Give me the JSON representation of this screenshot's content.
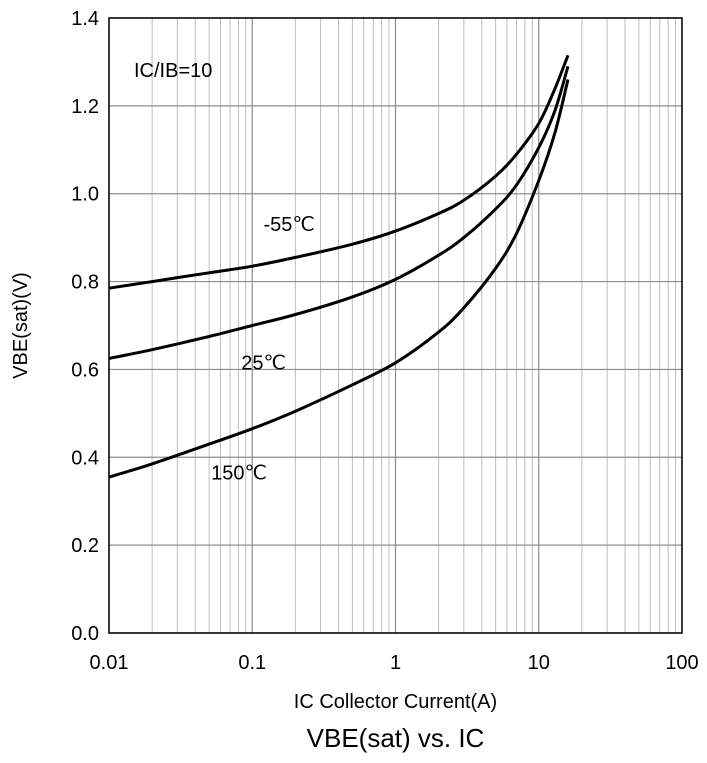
{
  "chart_data": {
    "type": "line",
    "title": "VBE(sat) vs. IC",
    "xlabel": "IC Collector Current(A)",
    "ylabel": "VBE(sat)(V)",
    "x_scale": "log",
    "xlim": [
      0.01,
      100
    ],
    "ylim": [
      0.0,
      1.4
    ],
    "x_ticks": [
      "0.01",
      "0.1",
      "1",
      "10",
      "100"
    ],
    "y_ticks": [
      "0.0",
      "0.2",
      "0.4",
      "0.6",
      "0.8",
      "1.0",
      "1.2",
      "1.4"
    ],
    "grid": true,
    "condition_label": "IC/IB=10",
    "series": [
      {
        "name": "-55℃",
        "x": [
          0.01,
          0.02,
          0.05,
          0.1,
          0.2,
          0.5,
          1,
          2,
          3,
          5,
          7,
          10,
          13,
          16
        ],
        "y": [
          0.785,
          0.8,
          0.82,
          0.835,
          0.855,
          0.885,
          0.915,
          0.955,
          0.985,
          1.04,
          1.09,
          1.16,
          1.24,
          1.315
        ]
      },
      {
        "name": "25℃",
        "x": [
          0.01,
          0.02,
          0.05,
          0.1,
          0.2,
          0.5,
          1,
          2,
          3,
          5,
          7,
          10,
          13,
          16
        ],
        "y": [
          0.625,
          0.645,
          0.675,
          0.7,
          0.725,
          0.765,
          0.805,
          0.86,
          0.9,
          0.965,
          1.02,
          1.105,
          1.19,
          1.29
        ]
      },
      {
        "name": "150℃",
        "x": [
          0.01,
          0.02,
          0.05,
          0.1,
          0.2,
          0.5,
          1,
          2,
          3,
          5,
          7,
          10,
          13,
          16
        ],
        "y": [
          0.355,
          0.385,
          0.43,
          0.465,
          0.505,
          0.565,
          0.615,
          0.685,
          0.74,
          0.83,
          0.91,
          1.03,
          1.14,
          1.26
        ]
      }
    ]
  }
}
